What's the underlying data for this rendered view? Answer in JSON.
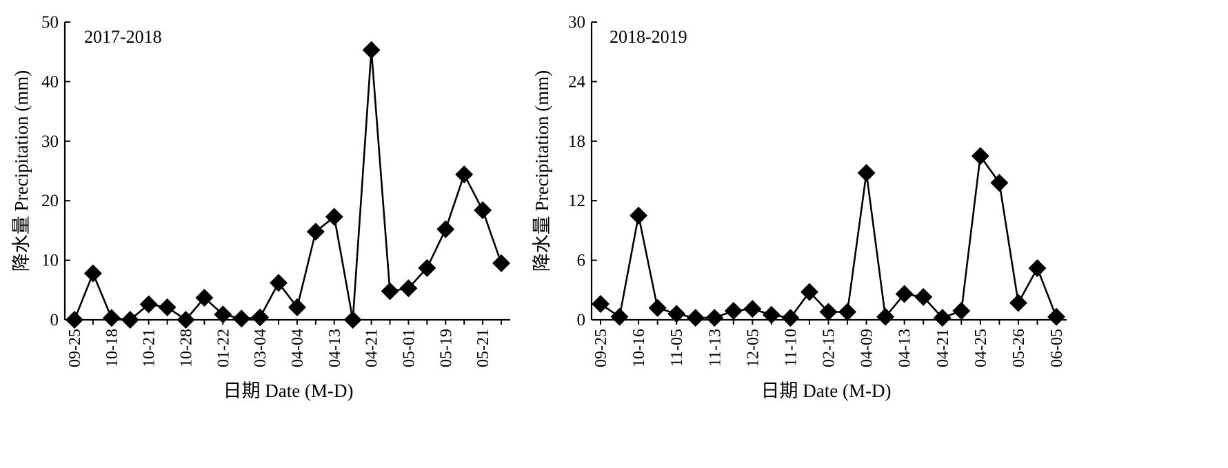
{
  "chart_data": [
    {
      "type": "line",
      "panel_label": "2017-2018",
      "ylabel": "降水量 Precipitation (mm)",
      "xlabel": "日期 Date (M-D)",
      "ylim": [
        0,
        50
      ],
      "yticks": [
        0,
        10,
        20,
        30,
        40,
        50
      ],
      "grid": false,
      "x_tick_labels": [
        "09-25",
        "10-18",
        "10-21",
        "10-28",
        "01-22",
        "03-04",
        "04-04",
        "04-13",
        "04-21",
        "05-01",
        "05-19",
        "05-21"
      ],
      "x_tick_label_every": 2,
      "values": [
        0,
        7.8,
        0.3,
        0,
        2.6,
        2.1,
        0,
        3.7,
        0.9,
        0.2,
        0.4,
        6.2,
        2.1,
        14.8,
        17.3,
        0,
        45.3,
        4.8,
        5.3,
        8.7,
        15.2,
        24.4,
        18.4,
        9.5
      ],
      "marker": "diamond",
      "color": "#000000"
    },
    {
      "type": "line",
      "panel_label": "2018-2019",
      "ylabel": "降水量 Precipitation (mm)",
      "xlabel": "日期 Date (M-D)",
      "ylim": [
        0,
        30
      ],
      "yticks": [
        0,
        6,
        12,
        18,
        24,
        30
      ],
      "grid": false,
      "x_tick_labels": [
        "09-25",
        "10-16",
        "11-05",
        "11-13",
        "12-05",
        "11-10",
        "02-15",
        "04-09",
        "04-13",
        "04-21",
        "04-25",
        "05-26",
        "06-05"
      ],
      "x_tick_label_every": 2,
      "values": [
        1.6,
        0.3,
        10.5,
        1.2,
        0.6,
        0.2,
        0.2,
        0.9,
        1.1,
        0.5,
        0.2,
        2.8,
        0.8,
        0.8,
        14.8,
        0.3,
        2.6,
        2.3,
        0.2,
        0.9,
        16.5,
        13.8,
        1.7,
        5.2,
        0.3
      ],
      "marker": "diamond",
      "color": "#000000"
    }
  ]
}
